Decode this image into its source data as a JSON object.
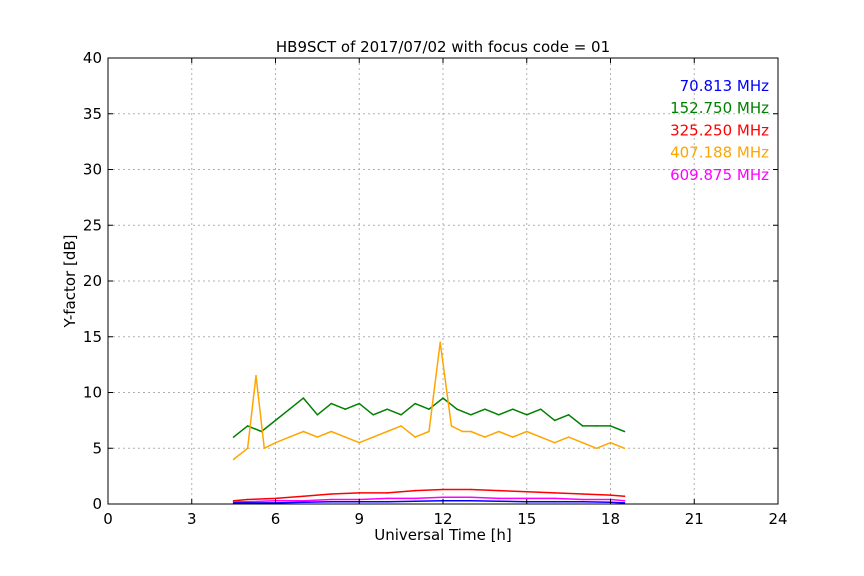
{
  "chart_data": {
    "type": "line",
    "title": "HB9SCT of 2017/07/02 with focus code = 01",
    "xlabel": "Universal Time [h]",
    "ylabel": "Y-factor [dB]",
    "xlim": [
      0,
      24
    ],
    "ylim": [
      0,
      40
    ],
    "xticks": [
      0,
      3,
      6,
      9,
      12,
      15,
      18,
      21,
      24
    ],
    "yticks": [
      0,
      5,
      10,
      15,
      20,
      25,
      30,
      35,
      40
    ],
    "xtick_labels": [
      "0",
      "3",
      "6",
      "9",
      "12",
      "15",
      "18",
      "21",
      "24"
    ],
    "ytick_labels": [
      "0",
      "5",
      "10",
      "15",
      "20",
      "25",
      "30",
      "35",
      "40"
    ],
    "grid": true,
    "legend_position": "top-right",
    "series": [
      {
        "name": "70.813 MHz",
        "color": "#0000ff",
        "x": [
          4.5,
          5.0,
          6.0,
          7.0,
          8.0,
          9.0,
          10.0,
          11.0,
          12.0,
          13.0,
          14.0,
          15.0,
          16.0,
          17.0,
          18.0,
          18.5
        ],
        "y": [
          0.1,
          0.1,
          0.1,
          0.15,
          0.2,
          0.2,
          0.2,
          0.25,
          0.3,
          0.3,
          0.25,
          0.2,
          0.2,
          0.2,
          0.15,
          0.1
        ]
      },
      {
        "name": "152.750 MHz",
        "color": "#008000",
        "x": [
          4.5,
          5.0,
          5.5,
          6.0,
          6.5,
          7.0,
          7.5,
          8.0,
          8.5,
          9.0,
          9.5,
          10.0,
          10.5,
          11.0,
          11.5,
          12.0,
          12.5,
          13.0,
          13.5,
          14.0,
          14.5,
          15.0,
          15.5,
          16.0,
          16.5,
          17.0,
          17.5,
          18.0,
          18.5
        ],
        "y": [
          6.0,
          7.0,
          6.5,
          7.5,
          8.5,
          9.5,
          8.0,
          9.0,
          8.5,
          9.0,
          8.0,
          8.5,
          8.0,
          9.0,
          8.5,
          9.5,
          8.5,
          8.0,
          8.5,
          8.0,
          8.5,
          8.0,
          8.5,
          7.5,
          8.0,
          7.0,
          7.0,
          7.0,
          6.5
        ]
      },
      {
        "name": "325.250 MHz",
        "color": "#ff0000",
        "x": [
          4.5,
          5.0,
          6.0,
          7.0,
          8.0,
          9.0,
          10.0,
          11.0,
          12.0,
          13.0,
          14.0,
          15.0,
          16.0,
          17.0,
          18.0,
          18.5
        ],
        "y": [
          0.3,
          0.4,
          0.5,
          0.7,
          0.9,
          1.0,
          1.0,
          1.2,
          1.3,
          1.3,
          1.2,
          1.1,
          1.0,
          0.9,
          0.8,
          0.7
        ]
      },
      {
        "name": "407.188 MHz",
        "color": "#ffa500",
        "x": [
          4.5,
          5.0,
          5.3,
          5.6,
          6.0,
          6.5,
          7.0,
          7.5,
          8.0,
          8.5,
          9.0,
          9.5,
          10.0,
          10.5,
          11.0,
          11.5,
          11.9,
          12.3,
          12.7,
          13.0,
          13.5,
          14.0,
          14.5,
          15.0,
          15.5,
          16.0,
          16.5,
          17.0,
          17.5,
          18.0,
          18.5
        ],
        "y": [
          4.0,
          5.0,
          11.5,
          5.0,
          5.5,
          6.0,
          6.5,
          6.0,
          6.5,
          6.0,
          5.5,
          6.0,
          6.5,
          7.0,
          6.0,
          6.5,
          14.5,
          7.0,
          6.5,
          6.5,
          6.0,
          6.5,
          6.0,
          6.5,
          6.0,
          5.5,
          6.0,
          5.5,
          5.0,
          5.5,
          5.0
        ]
      },
      {
        "name": "609.875 MHz",
        "color": "#ff00ff",
        "x": [
          4.5,
          5.0,
          6.0,
          7.0,
          8.0,
          9.0,
          10.0,
          11.0,
          12.0,
          13.0,
          14.0,
          15.0,
          16.0,
          17.0,
          18.0,
          18.5
        ],
        "y": [
          0.2,
          0.2,
          0.3,
          0.3,
          0.4,
          0.4,
          0.5,
          0.5,
          0.6,
          0.6,
          0.5,
          0.5,
          0.5,
          0.4,
          0.4,
          0.3
        ]
      }
    ]
  }
}
